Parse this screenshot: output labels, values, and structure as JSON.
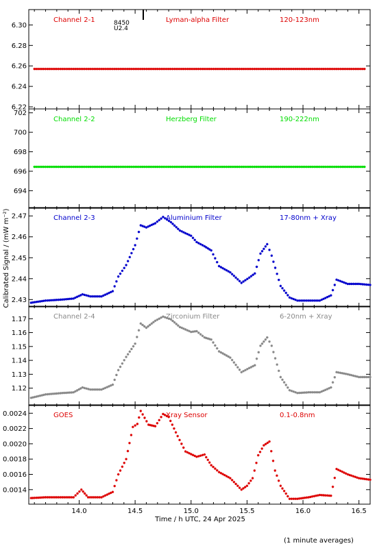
{
  "figure": {
    "ylabel": "Calibrated Signal / (mW m⁻²)",
    "xlabel": "Time / h UTC, 24 Apr 2025",
    "footnote": "(1 minute averages)",
    "xticks": [
      "14.0",
      "14.5",
      "15.0",
      "15.5",
      "16.0",
      "16.5"
    ]
  },
  "chart_data": [
    {
      "type": "scatter",
      "name": "Channel 2-1",
      "title": "Lyman-alpha Filter",
      "band": "120-123nm",
      "color": "#dd0000",
      "xlim": [
        13.55,
        16.6
      ],
      "ylim": [
        6.218,
        6.315
      ],
      "yticks": [
        "6.22",
        "6.24",
        "6.26",
        "6.28",
        "6.30"
      ],
      "extra_labels": [
        "8450",
        "U2.4"
      ],
      "x": [
        13.6,
        14.0,
        14.5,
        15.0,
        15.5,
        16.0,
        16.55
      ],
      "y": [
        6.257,
        6.257,
        6.257,
        6.257,
        6.257,
        6.257,
        6.257
      ]
    },
    {
      "type": "scatter",
      "name": "Channel 2-2",
      "title": "Herzberg Filter",
      "band": "190-222nm",
      "color": "#00dd00",
      "xlim": [
        13.55,
        16.6
      ],
      "ylim": [
        692.2,
        702.4
      ],
      "yticks": [
        "694",
        "696",
        "698",
        "700",
        "702"
      ],
      "x": [
        13.6,
        14.0,
        14.5,
        15.0,
        15.5,
        16.0,
        16.55
      ],
      "y": [
        696.45,
        696.45,
        696.45,
        696.45,
        696.45,
        696.45,
        696.45
      ]
    },
    {
      "type": "scatter",
      "name": "Channel 2-3",
      "title": "Aluminium Filter",
      "band": "17-80nm + Xray",
      "color": "#0000cc",
      "xlim": [
        13.55,
        16.6
      ],
      "ylim": [
        2.4265,
        2.474
      ],
      "yticks": [
        "2.43",
        "2.44",
        "2.45",
        "2.46",
        "2.47"
      ],
      "x": [
        13.57,
        13.7,
        13.85,
        13.95,
        14.03,
        14.1,
        14.2,
        14.3,
        14.35,
        14.42,
        14.5,
        14.55,
        14.6,
        14.68,
        14.75,
        14.82,
        14.9,
        15.0,
        15.05,
        15.12,
        15.18,
        15.25,
        15.35,
        15.45,
        15.52,
        15.57,
        15.62,
        15.68,
        15.72,
        15.8,
        15.88,
        15.95,
        16.05,
        16.15,
        16.25,
        16.3,
        16.4,
        16.5,
        16.6
      ],
      "y": [
        2.4285,
        2.4295,
        2.43,
        2.4305,
        2.4325,
        2.4315,
        2.4315,
        2.434,
        2.441,
        2.4465,
        2.456,
        2.4655,
        2.4645,
        2.4665,
        2.4695,
        2.467,
        2.463,
        2.4605,
        2.4575,
        2.4555,
        2.4535,
        2.446,
        2.443,
        2.438,
        2.4405,
        2.4425,
        2.452,
        2.4565,
        2.451,
        2.4365,
        2.431,
        2.4295,
        2.4295,
        2.4295,
        2.432,
        2.4395,
        2.4375,
        2.4375,
        2.437
      ]
    },
    {
      "type": "scatter",
      "name": "Channel 2-4",
      "title": "Zirconium Filter",
      "band": "6-20nm + Xray",
      "color": "#888888",
      "xlim": [
        13.55,
        16.6
      ],
      "ylim": [
        1.1075,
        1.179
      ],
      "yticks": [
        "1.12",
        "1.13",
        "1.14",
        "1.15",
        "1.16",
        "1.17"
      ],
      "x": [
        13.57,
        13.7,
        13.85,
        13.95,
        14.03,
        14.1,
        14.2,
        14.3,
        14.35,
        14.42,
        14.5,
        14.55,
        14.6,
        14.68,
        14.75,
        14.82,
        14.9,
        15.0,
        15.05,
        15.12,
        15.18,
        15.25,
        15.35,
        15.45,
        15.52,
        15.57,
        15.62,
        15.68,
        15.72,
        15.8,
        15.88,
        15.95,
        16.05,
        16.15,
        16.25,
        16.3,
        16.4,
        16.5,
        16.6
      ],
      "y": [
        1.113,
        1.1155,
        1.1165,
        1.117,
        1.1205,
        1.119,
        1.119,
        1.1225,
        1.133,
        1.1425,
        1.152,
        1.1665,
        1.1635,
        1.1685,
        1.1715,
        1.1695,
        1.164,
        1.1605,
        1.161,
        1.1565,
        1.155,
        1.1465,
        1.142,
        1.1315,
        1.1345,
        1.1365,
        1.1505,
        1.1565,
        1.1505,
        1.128,
        1.1185,
        1.1165,
        1.117,
        1.117,
        1.1205,
        1.1315,
        1.13,
        1.128,
        1.128
      ]
    },
    {
      "type": "scatter",
      "name": "GOES",
      "title": "Xray Sensor",
      "band": "0.1-0.8nm",
      "color": "#dd0000",
      "xlim": [
        13.55,
        16.6
      ],
      "ylim": [
        0.00121,
        0.00251
      ],
      "yticks": [
        "0.0014",
        "0.0016",
        "0.0018",
        "0.0020",
        "0.0022",
        "0.0024"
      ],
      "x": [
        13.57,
        13.7,
        13.85,
        13.95,
        14.02,
        14.08,
        14.2,
        14.3,
        14.35,
        14.42,
        14.48,
        14.52,
        14.55,
        14.62,
        14.68,
        14.75,
        14.8,
        14.88,
        14.95,
        15.05,
        15.12,
        15.18,
        15.25,
        15.35,
        15.45,
        15.5,
        15.55,
        15.6,
        15.65,
        15.7,
        15.75,
        15.8,
        15.88,
        15.95,
        16.05,
        16.15,
        16.25,
        16.3,
        16.4,
        16.5,
        16.6
      ],
      "y": [
        0.00129,
        0.0013,
        0.0013,
        0.0013,
        0.0014,
        0.0013,
        0.0013,
        0.00137,
        0.0016,
        0.0018,
        0.00222,
        0.00226,
        0.00243,
        0.00225,
        0.00223,
        0.00239,
        0.00235,
        0.0021,
        0.0019,
        0.00183,
        0.00186,
        0.00172,
        0.00163,
        0.00155,
        0.0014,
        0.00145,
        0.00155,
        0.00185,
        0.00198,
        0.00203,
        0.00165,
        0.00145,
        0.00128,
        0.00128,
        0.0013,
        0.00133,
        0.00132,
        0.00167,
        0.0016,
        0.00155,
        0.00153
      ]
    }
  ]
}
